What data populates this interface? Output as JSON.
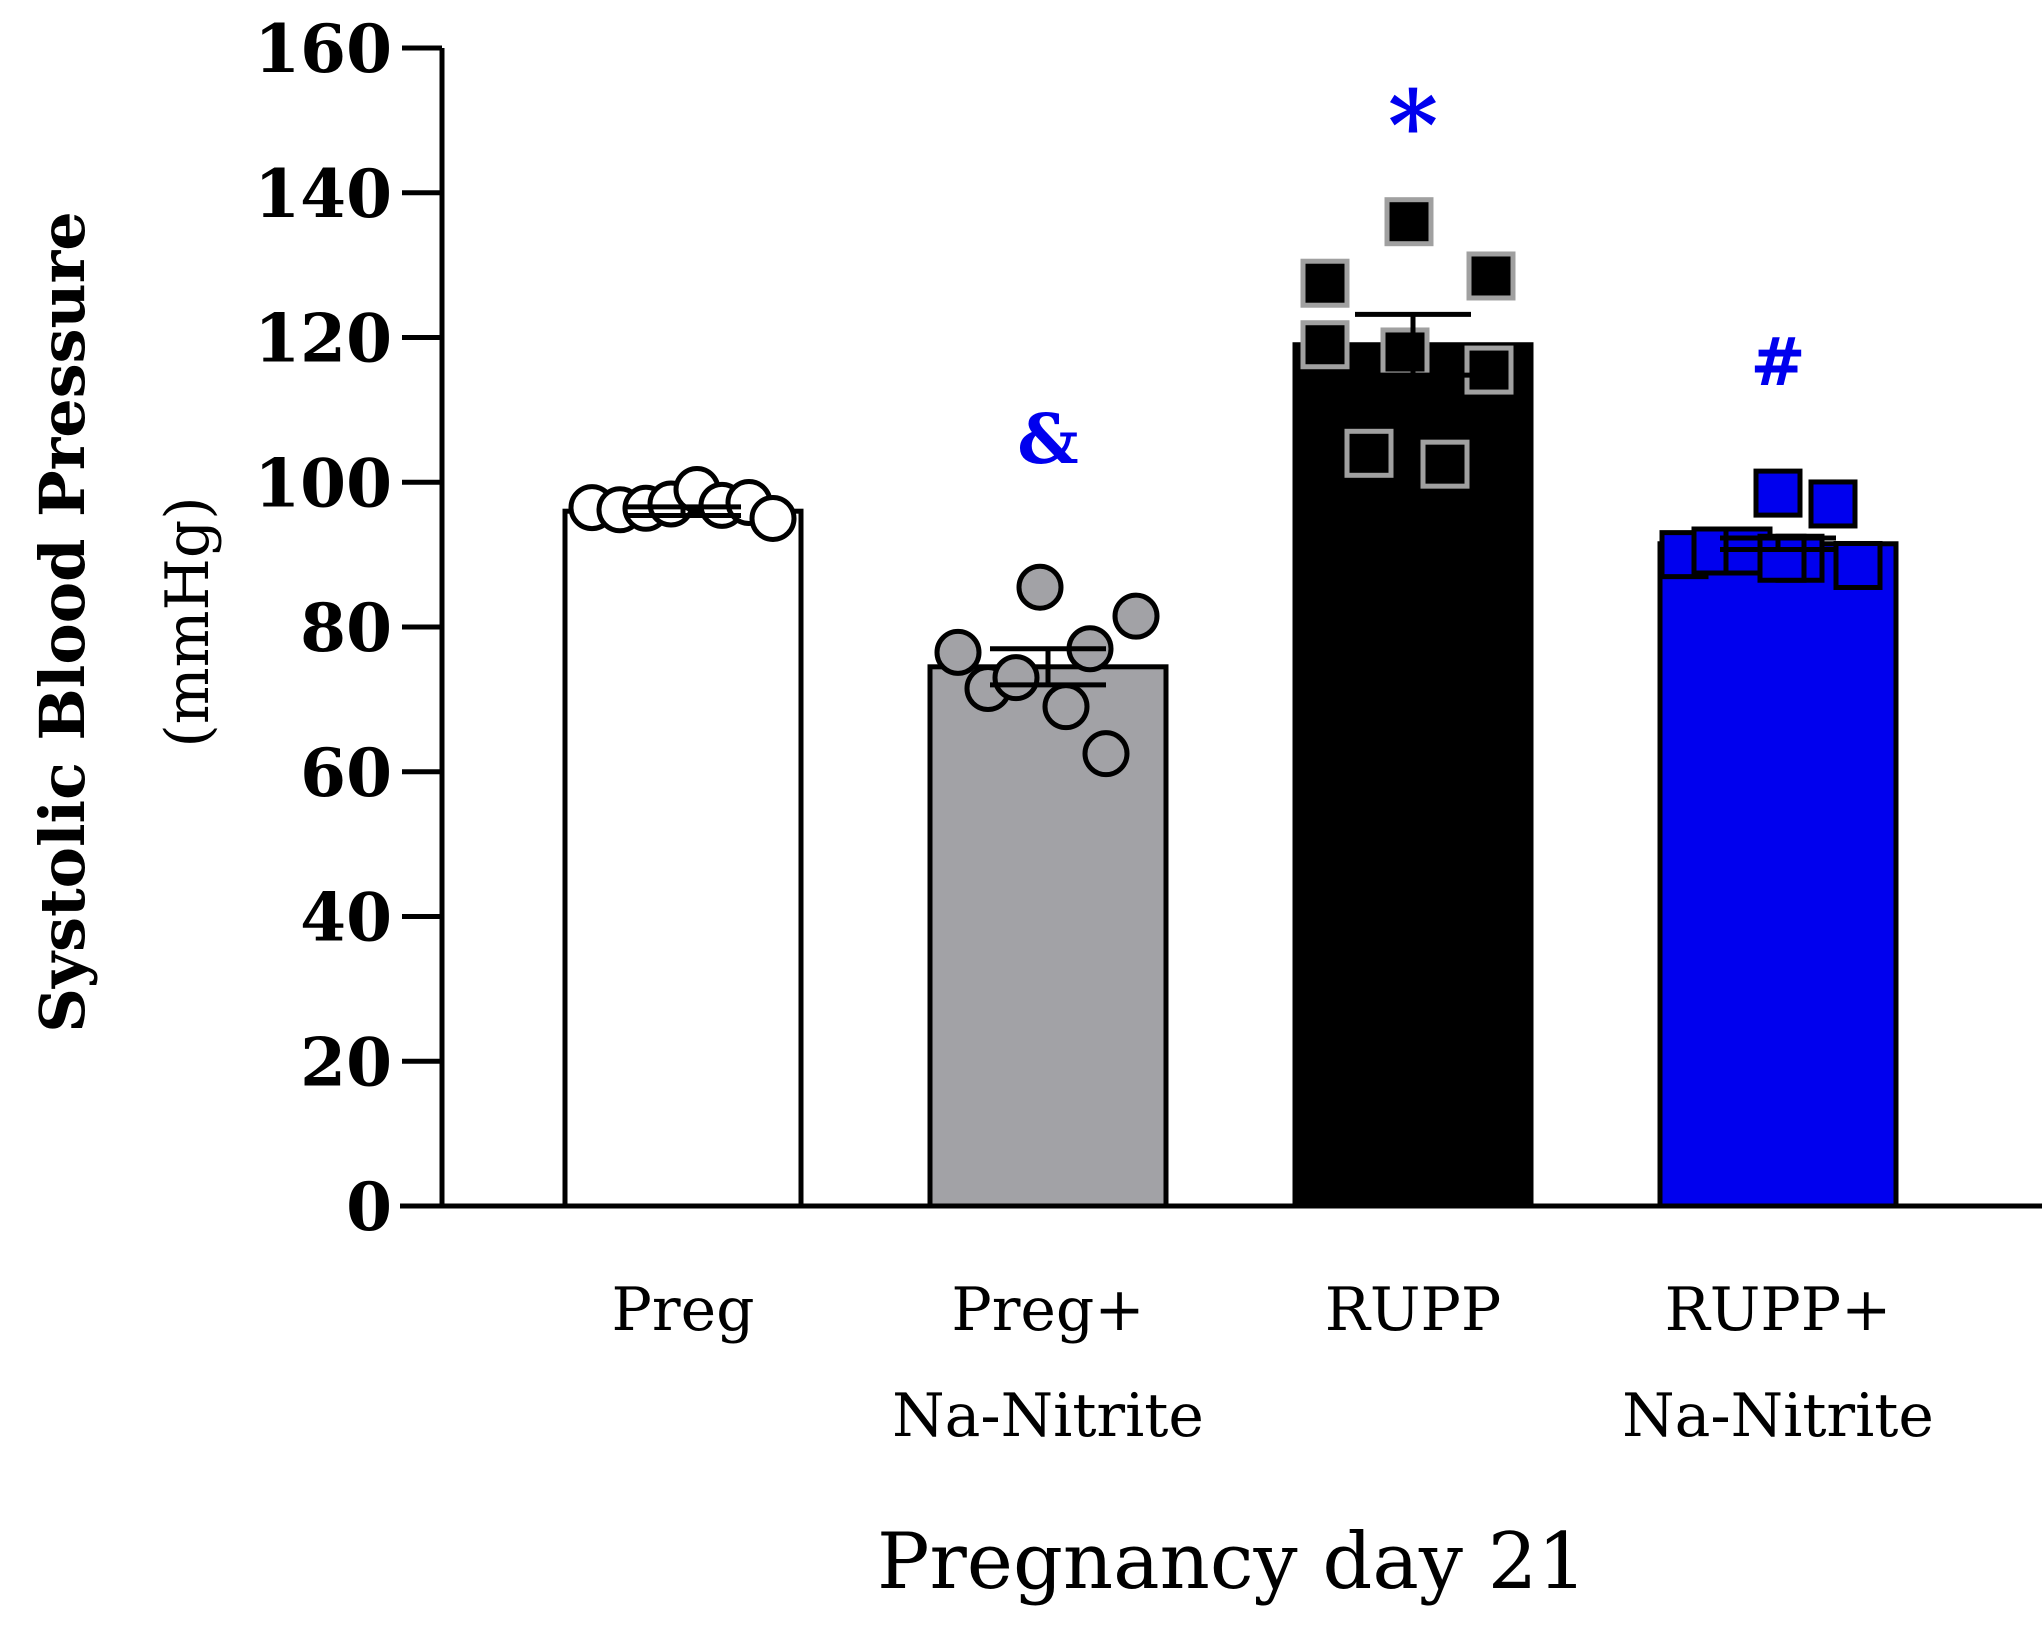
{
  "chart_data": {
    "type": "bar",
    "title": "",
    "ylabel": "Systolic Blood Pressure",
    "ylabel_unit": "(mmHg)",
    "xlabel": "Pregnancy day 21",
    "ylim": [
      0,
      160
    ],
    "yticks": [
      "0",
      "20",
      "40",
      "60",
      "80",
      "100",
      "120",
      "140",
      "160"
    ],
    "categories": [
      {
        "line1": "Preg",
        "line2": ""
      },
      {
        "line1": "Preg+",
        "line2": "Na-Nitrite"
      },
      {
        "line1": "RUPP",
        "line2": ""
      },
      {
        "line1": "RUPP+",
        "line2": "Na-Nitrite"
      }
    ],
    "series": [
      {
        "name": "Preg",
        "value": 96,
        "sem": 0.6,
        "fill": "#ffffff",
        "marker": "circle",
        "marker_fill": "#ffffff",
        "marker_stroke": "#000000",
        "points": [
          96.5,
          96.2,
          96.4,
          97.0,
          99.0,
          96.8,
          97.2,
          95.0
        ],
        "annotation": ""
      },
      {
        "name": "Preg+ Na-Nitrite",
        "value": 74.5,
        "sem": 2.5,
        "fill": "#a2a2a6",
        "marker": "circle",
        "marker_fill": "#a2a2a6",
        "marker_stroke": "#000000",
        "points": [
          76.5,
          71.5,
          73.0,
          85.5,
          69.0,
          77.0,
          62.5,
          81.5
        ],
        "annotation": "&"
      },
      {
        "name": "RUPP",
        "value": 119,
        "sem": 4.2,
        "fill": "#000000",
        "marker": "square",
        "marker_fill": "#000000",
        "marker_stroke": "#a0a0a0",
        "points": [
          127.5,
          119.0,
          136.0,
          118.0,
          104.0,
          102.5,
          128.5,
          115.5
        ],
        "annotation": "*"
      },
      {
        "name": "RUPP+ Na-Nitrite",
        "value": 91.5,
        "sem": 0.8,
        "fill": "#0000ee",
        "marker": "square",
        "marker_fill": "#0000ee",
        "marker_stroke": "#000000",
        "points": [
          90.0,
          90.5,
          90.5,
          98.5,
          89.5,
          97.0,
          89.5,
          88.5
        ],
        "annotation": "#"
      }
    ],
    "annotation_color": "#0000ee"
  }
}
